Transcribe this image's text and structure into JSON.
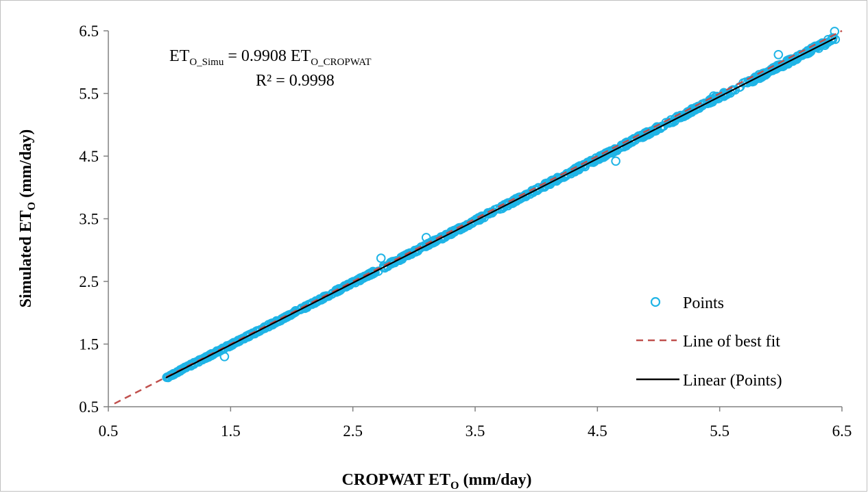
{
  "chart_data": {
    "type": "scatter",
    "title": "",
    "xlabel": {
      "main": "CROPWAT ET",
      "sub": "O",
      "tail": " (mm/day)"
    },
    "ylabel": {
      "main": "Simulated ET",
      "sub": "O",
      "tail": " (mm/day)"
    },
    "xlim": [
      0.5,
      6.5
    ],
    "ylim": [
      0.5,
      6.5
    ],
    "x_ticks": [
      "0.5",
      "1.5",
      "2.5",
      "3.5",
      "4.5",
      "5.5",
      "6.5"
    ],
    "y_ticks": [
      "0.5",
      "1.5",
      "2.5",
      "3.5",
      "4.5",
      "5.5",
      "6.5"
    ],
    "grid": false,
    "legend_position": "bottom-right",
    "equation": {
      "lhs_main": "ET",
      "lhs_sub": "O_Simu",
      "mid": " = 0.9908 ET",
      "rhs_sub": "O_CROPWAT",
      "r2": "R² = 0.9998"
    },
    "series": [
      {
        "name": "Points",
        "style": "scatter",
        "color": "#1fb4e6",
        "x_range": [
          0.97,
          6.45
        ],
        "slope": 0.9908,
        "note_points": [
          [
            2.73,
            2.87
          ],
          [
            3.1,
            3.2
          ],
          [
            1.45,
            1.3
          ],
          [
            5.98,
            6.12
          ],
          [
            6.44,
            6.49
          ],
          [
            6.06,
            5.97
          ],
          [
            5.45,
            5.46
          ],
          [
            4.65,
            4.42
          ]
        ]
      },
      {
        "name": "Line of best fit",
        "style": "dashed",
        "color": "#c0504d",
        "x": [
          0.55,
          6.5
        ],
        "y": [
          0.55,
          6.5
        ]
      },
      {
        "name": "Linear (Points)",
        "style": "solid",
        "color": "#000000",
        "x": [
          0.97,
          6.45
        ],
        "y": [
          0.961,
          6.391
        ]
      }
    ]
  }
}
